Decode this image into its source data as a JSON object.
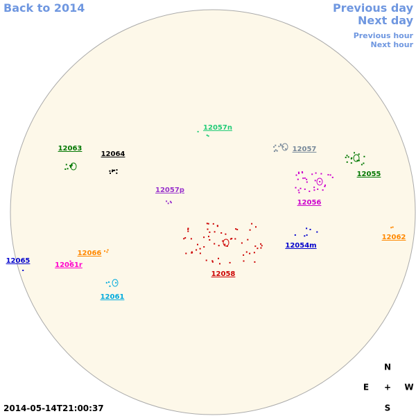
{
  "nav": {
    "back": "Back to 2014",
    "previous_day": "Previous day",
    "next_day": "Next day",
    "previous_hour": "Previous hour",
    "next_hour": "Next hour"
  },
  "regions": [
    {
      "label": "12057n",
      "color": "#22cc77"
    },
    {
      "label": "12063",
      "color": "#007700"
    },
    {
      "label": "12064",
      "color": "#000000"
    },
    {
      "label": "12057",
      "color": "#778899"
    },
    {
      "label": "12055",
      "color": "#007700"
    },
    {
      "label": "12057p",
      "color": "#9933cc"
    },
    {
      "label": "12056",
      "color": "#cc00cc"
    },
    {
      "label": "12062",
      "color": "#ff8800"
    },
    {
      "label": "12054m",
      "color": "#0000cc"
    },
    {
      "label": "12066",
      "color": "#ff8800"
    },
    {
      "label": "12065",
      "color": "#0000cc"
    },
    {
      "label": "12061r",
      "color": "#ff00cc"
    },
    {
      "label": "12058",
      "color": "#cc0000"
    },
    {
      "label": "12061",
      "color": "#00aadd"
    }
  ],
  "timestamp": "2014-05-14T21:00:37",
  "compass": {
    "north": "N",
    "east": "E",
    "center": "+",
    "west": "W",
    "south": "S"
  }
}
